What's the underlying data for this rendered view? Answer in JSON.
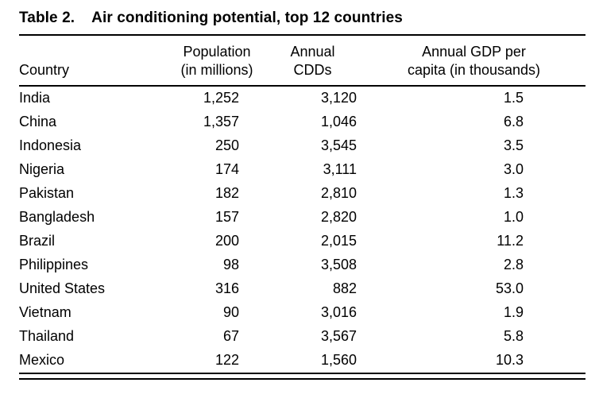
{
  "table": {
    "caption_label": "Table 2.",
    "caption_title": "Air conditioning potential, top 12 countries",
    "headers": {
      "country": "Country",
      "population_line1": "Population",
      "population_line2": "(in millions)",
      "cdds_line1": "Annual",
      "cdds_line2": "CDDs",
      "gdp_line1": "Annual GDP per",
      "gdp_line2": "capita (in thousands)"
    },
    "rows": [
      {
        "country": "India",
        "population": "1,252",
        "cdds": "3,120",
        "gdp": "1.5"
      },
      {
        "country": "China",
        "population": "1,357",
        "cdds": "1,046",
        "gdp": "6.8"
      },
      {
        "country": "Indonesia",
        "population": "250",
        "cdds": "3,545",
        "gdp": "3.5"
      },
      {
        "country": "Nigeria",
        "population": "174",
        "cdds": "3,111",
        "gdp": "3.0"
      },
      {
        "country": "Pakistan",
        "population": "182",
        "cdds": "2,810",
        "gdp": "1.3"
      },
      {
        "country": "Bangladesh",
        "population": "157",
        "cdds": "2,820",
        "gdp": "1.0"
      },
      {
        "country": "Brazil",
        "population": "200",
        "cdds": "2,015",
        "gdp": "11.2"
      },
      {
        "country": "Philippines",
        "population": "98",
        "cdds": "3,508",
        "gdp": "2.8"
      },
      {
        "country": "United States",
        "population": "316",
        "cdds": "882",
        "gdp": "53.0"
      },
      {
        "country": "Vietnam",
        "population": "90",
        "cdds": "3,016",
        "gdp": "1.9"
      },
      {
        "country": "Thailand",
        "population": "67",
        "cdds": "3,567",
        "gdp": "5.8"
      },
      {
        "country": "Mexico",
        "population": "122",
        "cdds": "1,560",
        "gdp": "10.3"
      }
    ]
  },
  "chart_data": {
    "type": "table",
    "title": "Table 2. Air conditioning potential, top 12 countries",
    "columns": [
      "Country",
      "Population (in millions)",
      "Annual CDDs",
      "Annual GDP per capita (in thousands)"
    ],
    "rows": [
      [
        "India",
        1252,
        3120,
        1.5
      ],
      [
        "China",
        1357,
        1046,
        6.8
      ],
      [
        "Indonesia",
        250,
        3545,
        3.5
      ],
      [
        "Nigeria",
        174,
        3111,
        3.0
      ],
      [
        "Pakistan",
        182,
        2810,
        1.3
      ],
      [
        "Bangladesh",
        157,
        2820,
        1.0
      ],
      [
        "Brazil",
        200,
        2015,
        11.2
      ],
      [
        "Philippines",
        98,
        3508,
        2.8
      ],
      [
        "United States",
        316,
        882,
        53.0
      ],
      [
        "Vietnam",
        90,
        3016,
        1.9
      ],
      [
        "Thailand",
        67,
        3567,
        5.8
      ],
      [
        "Mexico",
        122,
        1560,
        10.3
      ]
    ]
  }
}
